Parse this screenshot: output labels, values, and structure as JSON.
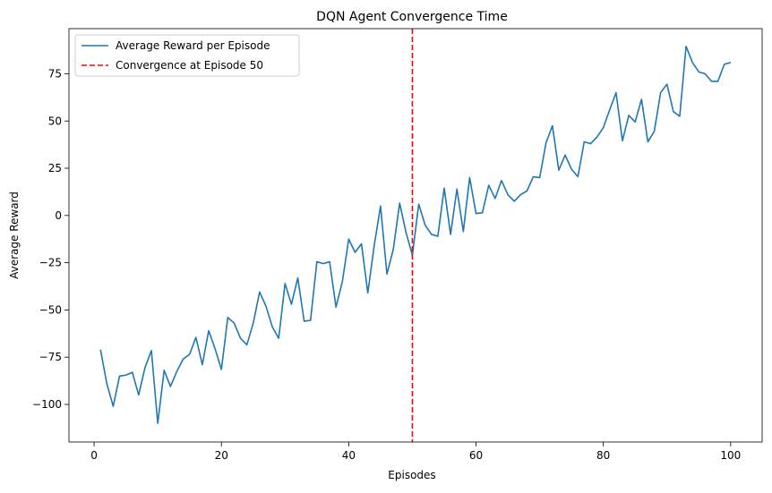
{
  "chart_data": {
    "type": "line",
    "title": "DQN Agent Convergence Time",
    "xlabel": "Episodes",
    "ylabel": "Average Reward",
    "xlim": [
      -3.95,
      104.95
    ],
    "ylim": [
      -119.9,
      98.9
    ],
    "xticks": [
      0,
      20,
      40,
      60,
      80,
      100
    ],
    "xtick_labels": [
      "0",
      "20",
      "40",
      "60",
      "80",
      "100"
    ],
    "yticks": [
      -100,
      -75,
      -50,
      -25,
      0,
      25,
      50,
      75
    ],
    "ytick_labels": [
      "−100",
      "−75",
      "−50",
      "−25",
      "0",
      "25",
      "50",
      "75"
    ],
    "grid": false,
    "legend_position": "upper-left",
    "series": [
      {
        "name": "Average Reward per Episode",
        "color": "#1f77b4",
        "style": "solid",
        "x": [
          1,
          2,
          3,
          4,
          5,
          6,
          7,
          8,
          9,
          10,
          11,
          12,
          13,
          14,
          15,
          16,
          17,
          18,
          19,
          20,
          21,
          22,
          23,
          24,
          25,
          26,
          27,
          28,
          29,
          30,
          31,
          32,
          33,
          34,
          35,
          36,
          37,
          38,
          39,
          40,
          41,
          42,
          43,
          44,
          45,
          46,
          47,
          48,
          49,
          50,
          51,
          52,
          53,
          54,
          55,
          56,
          57,
          58,
          59,
          60,
          61,
          62,
          63,
          64,
          65,
          66,
          67,
          68,
          69,
          70,
          71,
          72,
          73,
          74,
          75,
          76,
          77,
          78,
          79,
          80,
          81,
          82,
          83,
          84,
          85,
          86,
          87,
          88,
          89,
          90,
          91,
          92,
          93,
          94,
          95,
          96,
          97,
          98,
          99,
          100
        ],
        "y": [
          -71,
          -89,
          -101,
          -85,
          -84.5,
          -83,
          -95,
          -80.5,
          -71.5,
          -110,
          -82,
          -90.5,
          -82.5,
          -76,
          -73.5,
          -64.5,
          -79,
          -61,
          -70.5,
          -81.5,
          -54,
          -57,
          -65,
          -68.5,
          -57,
          -40.5,
          -48,
          -59,
          -65,
          -36,
          -47,
          -33,
          -56,
          -55.5,
          -24.5,
          -25.5,
          -24.5,
          -48.5,
          -35,
          -12.5,
          -19.5,
          -15,
          -41,
          -16,
          5,
          -31,
          -18,
          6.5,
          -9,
          -21,
          6,
          -5,
          -10,
          -11,
          14.5,
          -10,
          14,
          -8.5,
          20,
          1,
          1.5,
          16,
          9,
          18.5,
          11,
          7.5,
          11,
          13,
          20.5,
          20,
          38.5,
          47.5,
          24,
          32,
          24.5,
          20.5,
          39,
          38,
          41.5,
          46.5,
          56,
          65,
          39.5,
          53,
          49.5,
          61.5,
          39,
          44.5,
          65,
          69.5,
          55,
          52.5,
          89.5,
          81,
          76,
          75,
          71,
          71,
          80,
          81
        ]
      },
      {
        "name": "Convergence at Episode 50",
        "color": "#ff0000",
        "style": "dashed",
        "vline_x": 50
      }
    ]
  }
}
